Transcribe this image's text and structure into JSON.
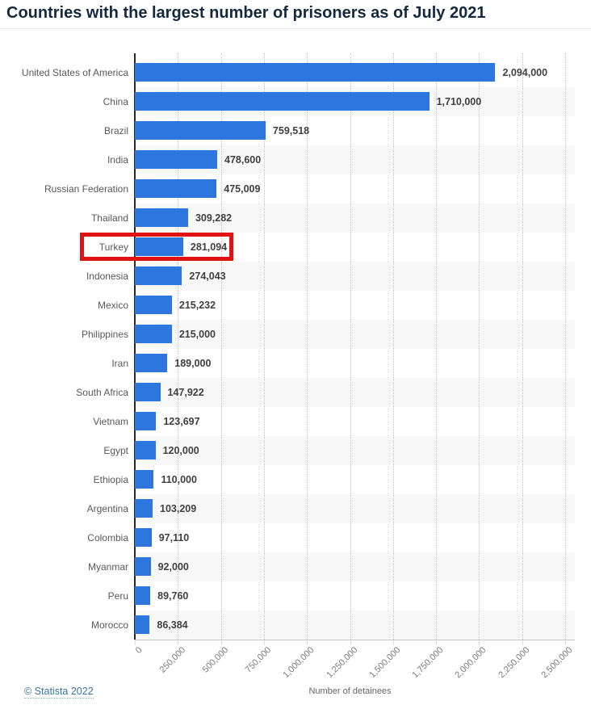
{
  "title": "Countries with the largest number of prisoners as of July 2021",
  "footer": {
    "copyright": "© Statista 2022"
  },
  "colors": {
    "bar": "#2c76dd",
    "highlight_box": "#e01212",
    "title_text": "#14293d",
    "row_band": "#f8f8f9",
    "copyright_link": "#38749f"
  },
  "chart_data": {
    "type": "bar",
    "orientation": "horizontal",
    "title": "Countries with the largest number of prisoners as of July 2021",
    "xlabel": "Number of detainees",
    "ylabel": "",
    "xlim": [
      0,
      2500000
    ],
    "x_ticks": [
      "0",
      "250,000",
      "500,000",
      "750,000",
      "1,000,000",
      "1,250,000",
      "1,500,000",
      "1,750,000",
      "2,000,000",
      "2,250,000",
      "2,500,000"
    ],
    "grid": "vertical-dotted",
    "legend": "none",
    "categories": [
      "United States of America",
      "China",
      "Brazil",
      "India",
      "Russian Federation",
      "Thailand",
      "Turkey",
      "Indonesia",
      "Mexico",
      "Philippines",
      "Iran",
      "South Africa",
      "Vietnam",
      "Egypt",
      "Ethiopia",
      "Argentina",
      "Colombia",
      "Myanmar",
      "Peru",
      "Morocco"
    ],
    "values": [
      2094000,
      1710000,
      759518,
      478600,
      475009,
      309282,
      281094,
      274043,
      215232,
      215000,
      189000,
      147922,
      123697,
      120000,
      110000,
      103209,
      97110,
      92000,
      89760,
      86384
    ],
    "value_labels": [
      "2,094,000",
      "1,710,000",
      "759,518",
      "478,600",
      "475,009",
      "309,282",
      "281,094",
      "274,043",
      "215,232",
      "215,000",
      "189,000",
      "147,922",
      "123,697",
      "120,000",
      "110,000",
      "103,209",
      "97,110",
      "92,000",
      "89,760",
      "86,384"
    ],
    "highlighted_category": "Turkey"
  }
}
